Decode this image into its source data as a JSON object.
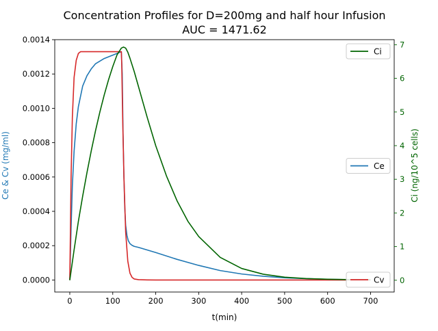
{
  "chart_data": {
    "type": "line",
    "title": "Concentration Profiles for D=200mg and half hour Infusion",
    "subtitle": "AUC = 1471.62",
    "xlabel": "t(min)",
    "ylabel_left": "Ce & Cv (mg/ml)",
    "ylabel_right": "Ci (ng/10^5 cells)",
    "xlim": [
      -35,
      755
    ],
    "ylim_left": [
      -7e-05,
      0.0014
    ],
    "ylim_right": [
      -0.35,
      7.15
    ],
    "x_ticks": [
      0,
      100,
      200,
      300,
      400,
      500,
      600,
      700
    ],
    "x_tick_labels": [
      "0",
      "100",
      "200",
      "300",
      "400",
      "500",
      "600",
      "700"
    ],
    "y_left_ticks": [
      0,
      0.0002,
      0.0004,
      0.0006,
      0.0008,
      0.001,
      0.0012,
      0.0014
    ],
    "y_left_tick_labels": [
      "0.0000",
      "0.0002",
      "0.0004",
      "0.0006",
      "0.0008",
      "0.0010",
      "0.0012",
      "0.0014"
    ],
    "y_right_ticks": [
      0,
      1,
      2,
      3,
      4,
      5,
      6,
      7
    ],
    "y_right_tick_labels": [
      "0",
      "1",
      "2",
      "3",
      "4",
      "5",
      "6",
      "7"
    ],
    "grid": false,
    "colors": {
      "Ce": "#1f77b4",
      "Cv": "#d62728",
      "Ci": "#006400",
      "left_axis_label": "#1f77b4",
      "right_axis": "#006400"
    },
    "series": [
      {
        "name": "Ce",
        "axis": "left",
        "x": [
          0,
          3,
          6,
          10,
          15,
          20,
          30,
          40,
          50,
          60,
          80,
          100,
          120,
          122,
          124,
          126,
          128,
          130,
          133,
          136,
          140,
          145,
          150,
          160,
          180,
          200,
          250,
          300,
          350,
          400,
          450,
          500,
          550,
          600,
          650,
          700
        ],
        "y": [
          0,
          0.0003,
          0.00055,
          0.00075,
          0.00091,
          0.00101,
          0.00113,
          0.00119,
          0.00123,
          0.00126,
          0.00129,
          0.00131,
          0.00133,
          0.0012,
          0.00085,
          0.0006,
          0.00042,
          0.00032,
          0.00026,
          0.00023,
          0.000212,
          0.000202,
          0.000196,
          0.00019,
          0.000175,
          0.00016,
          0.00012,
          8.5e-05,
          5.5e-05,
          3.5e-05,
          2.2e-05,
          1.3e-05,
          8e-06,
          4e-06,
          2e-06,
          1e-06
        ]
      },
      {
        "name": "Cv",
        "axis": "left",
        "x": [
          0,
          3,
          6,
          10,
          15,
          20,
          25,
          30,
          40,
          60,
          80,
          100,
          120,
          121,
          123,
          126,
          130,
          135,
          140,
          145,
          150,
          160,
          180,
          200,
          300,
          400,
          500,
          600,
          700
        ],
        "y": [
          0,
          0.0006,
          0.00095,
          0.00118,
          0.00128,
          0.00132,
          0.00133,
          0.00133,
          0.00133,
          0.00133,
          0.00133,
          0.00133,
          0.00133,
          0.00125,
          0.00095,
          0.0006,
          0.00028,
          0.00011,
          4e-05,
          1.5e-05,
          6e-06,
          2e-06,
          5e-07,
          0,
          0,
          0,
          0,
          0,
          0
        ]
      },
      {
        "name": "Ci",
        "axis": "right",
        "x": [
          0,
          10,
          20,
          30,
          40,
          50,
          60,
          70,
          80,
          90,
          100,
          110,
          120,
          125,
          130,
          135,
          140,
          150,
          160,
          180,
          200,
          225,
          250,
          275,
          300,
          350,
          400,
          450,
          500,
          550,
          600,
          650,
          700
        ],
        "y": [
          0,
          0.9,
          1.75,
          2.5,
          3.2,
          3.85,
          4.45,
          5.0,
          5.5,
          5.95,
          6.35,
          6.7,
          6.9,
          6.93,
          6.9,
          6.78,
          6.6,
          6.2,
          5.75,
          4.85,
          4.0,
          3.1,
          2.35,
          1.75,
          1.3,
          0.68,
          0.35,
          0.18,
          0.09,
          0.05,
          0.03,
          0.02,
          0.015
        ]
      }
    ],
    "legends": [
      {
        "label": "Ci",
        "color": "#006400",
        "placement": "top-right"
      },
      {
        "label": "Ce",
        "color": "#1f77b4",
        "placement": "center-right"
      },
      {
        "label": "Cv",
        "color": "#d62728",
        "placement": "bottom-right"
      }
    ]
  }
}
